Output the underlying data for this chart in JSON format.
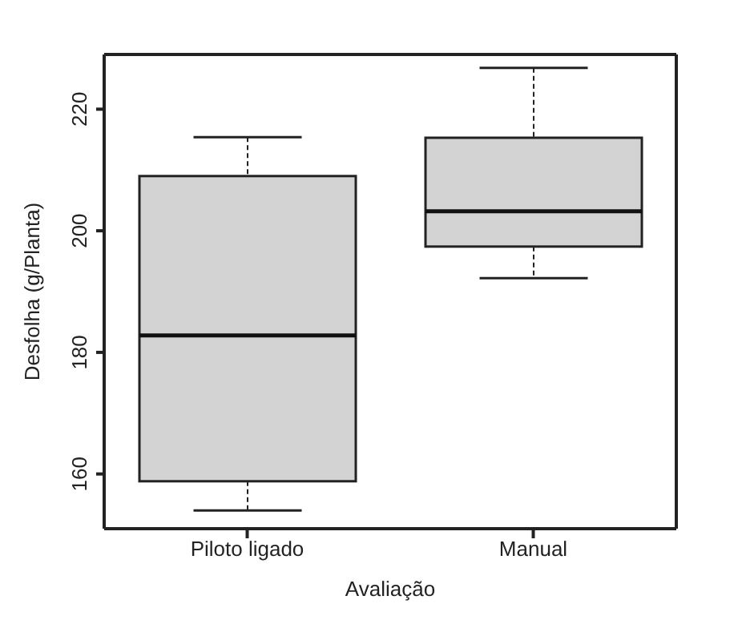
{
  "chart_data": {
    "type": "box",
    "xlabel": "Avaliação",
    "ylabel": "Desfolha (g/Planta)",
    "categories": [
      "Piloto ligado",
      "Manual"
    ],
    "color": "#d3d3d3",
    "boxes": [
      {
        "low": 154,
        "q1": 158.8,
        "median": 182.8,
        "q3": 209,
        "high": 215.4
      },
      {
        "low": 192.2,
        "q1": 197.4,
        "median": 203.2,
        "q3": 215.3,
        "high": 226.8
      }
    ],
    "ylim": [
      151,
      229
    ],
    "yticks": [
      160,
      180,
      200,
      220
    ]
  }
}
